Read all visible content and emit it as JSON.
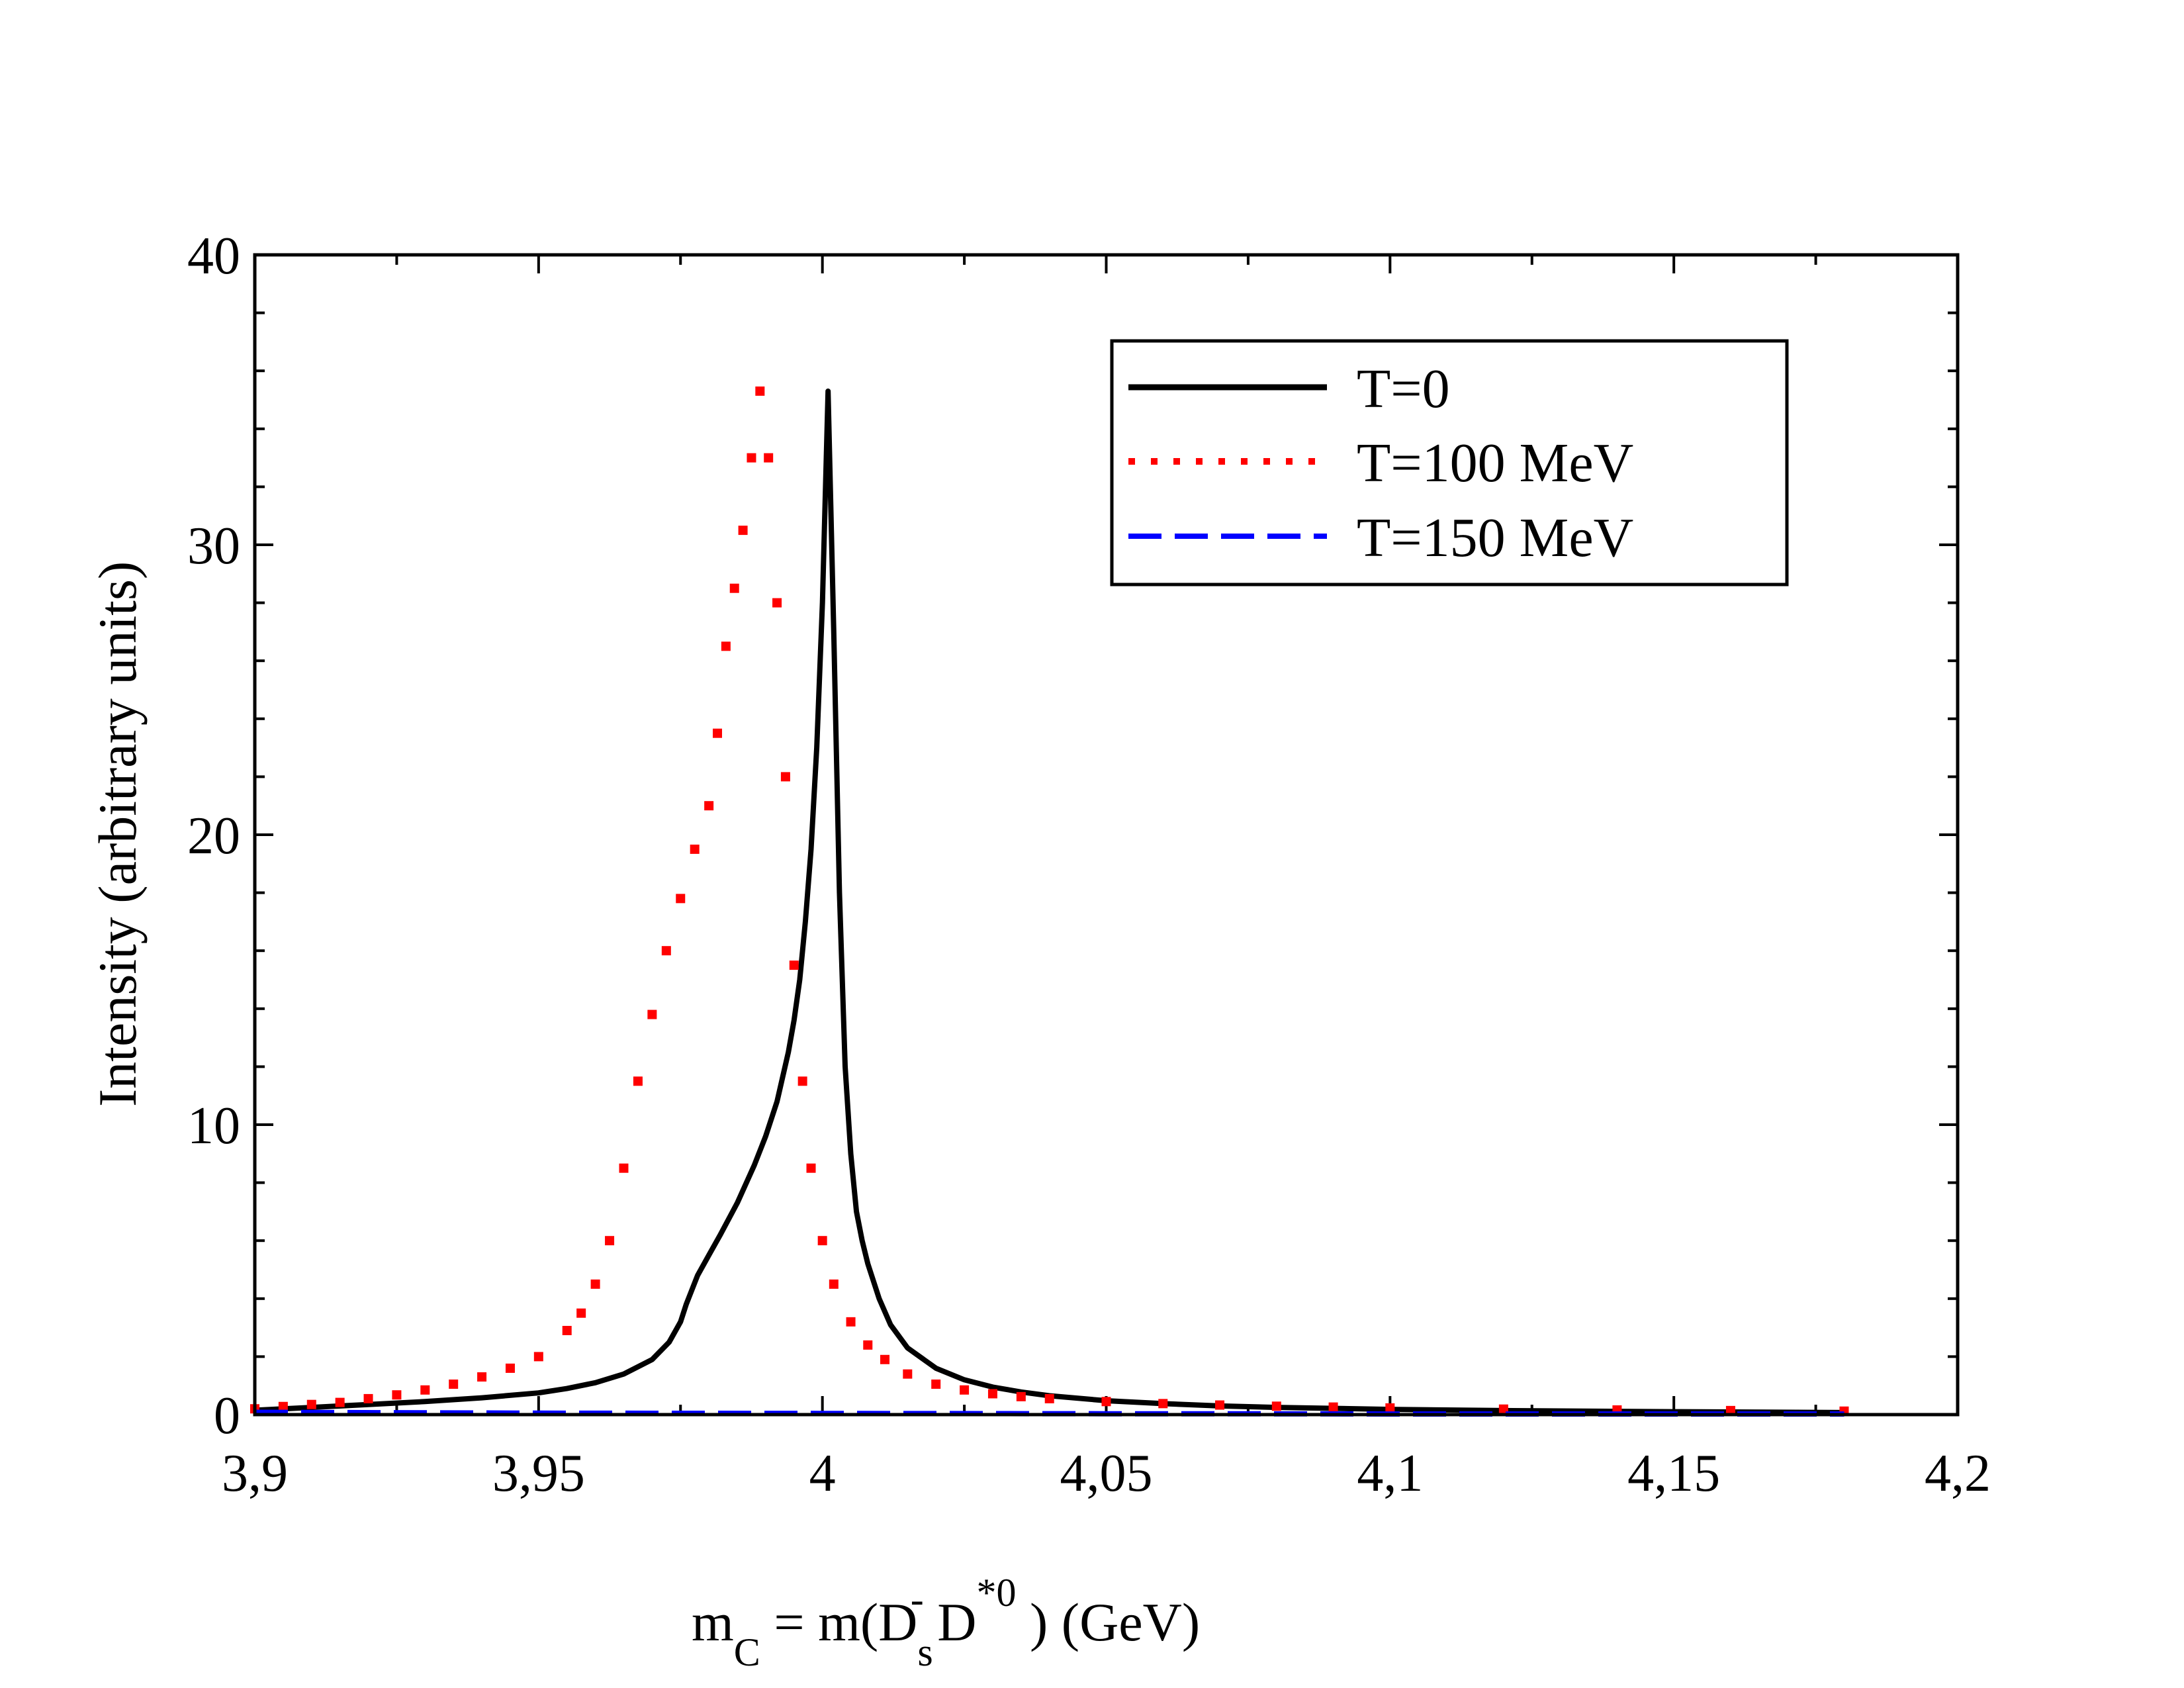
{
  "chart_data": {
    "type": "line",
    "xlabel": {
      "main": "m",
      "main_sub": "C",
      "eq": " = m(D",
      "d_sub": "s",
      "d_sup": "-",
      "mid": " D",
      "mid_sup": "*0",
      "tail": " )  (GeV)"
    },
    "ylabel": "Intensity (arbitrary units)",
    "xlim": [
      3.9,
      4.2
    ],
    "ylim": [
      0,
      40
    ],
    "xticks": [
      {
        "value": 3.9,
        "label": "3,9"
      },
      {
        "value": 3.95,
        "label": "3,95"
      },
      {
        "value": 4.0,
        "label": "4"
      },
      {
        "value": 4.05,
        "label": "4,05"
      },
      {
        "value": 4.1,
        "label": "4,1"
      },
      {
        "value": 4.15,
        "label": "4,15"
      },
      {
        "value": 4.2,
        "label": "4,2"
      }
    ],
    "yticks": [
      {
        "value": 0,
        "label": "0"
      },
      {
        "value": 10,
        "label": "10"
      },
      {
        "value": 20,
        "label": "20"
      },
      {
        "value": 30,
        "label": "30"
      },
      {
        "value": 40,
        "label": "40"
      }
    ],
    "legend_position": "top-right",
    "series": [
      {
        "name": "T=0",
        "color": "#000000",
        "style": "solid",
        "x": [
          3.9,
          3.91,
          3.92,
          3.93,
          3.94,
          3.95,
          3.955,
          3.96,
          3.965,
          3.97,
          3.973,
          3.975,
          3.976,
          3.977,
          3.978,
          3.98,
          3.982,
          3.985,
          3.988,
          3.99,
          3.992,
          3.994,
          3.995,
          3.996,
          3.997,
          3.998,
          3.999,
          4.0,
          4.001,
          4.002,
          4.003,
          4.004,
          4.005,
          4.006,
          4.007,
          4.008,
          4.01,
          4.012,
          4.015,
          4.02,
          4.025,
          4.03,
          4.035,
          4.04,
          4.05,
          4.06,
          4.07,
          4.08,
          4.1,
          4.12,
          4.15,
          4.18
        ],
        "y": [
          0.15,
          0.25,
          0.35,
          0.45,
          0.58,
          0.75,
          0.9,
          1.1,
          1.4,
          1.9,
          2.5,
          3.2,
          3.8,
          4.3,
          4.8,
          5.5,
          6.2,
          7.3,
          8.6,
          9.6,
          10.8,
          12.5,
          13.6,
          15.0,
          17.0,
          19.5,
          23.0,
          28.0,
          35.3,
          27.0,
          18.0,
          12.0,
          9.0,
          7.0,
          6.0,
          5.2,
          4.0,
          3.1,
          2.3,
          1.6,
          1.2,
          0.95,
          0.78,
          0.65,
          0.48,
          0.38,
          0.3,
          0.25,
          0.18,
          0.14,
          0.1,
          0.07
        ]
      },
      {
        "name": "T=100 MeV",
        "color": "#ff0000",
        "style": "dotted",
        "x": [
          3.9,
          3.905,
          3.91,
          3.915,
          3.92,
          3.925,
          3.93,
          3.935,
          3.94,
          3.945,
          3.95,
          3.955,
          3.9575,
          3.96,
          3.9625,
          3.965,
          3.9675,
          3.97,
          3.9725,
          3.975,
          3.9775,
          3.98,
          3.9815,
          3.983,
          3.9845,
          3.986,
          3.9875,
          3.989,
          3.9905,
          3.992,
          3.9935,
          3.995,
          3.9965,
          3.998,
          4.0,
          4.002,
          4.005,
          4.008,
          4.011,
          4.015,
          4.02,
          4.025,
          4.03,
          4.035,
          4.04,
          4.05,
          4.06,
          4.07,
          4.08,
          4.09,
          4.1,
          4.12,
          4.14,
          4.16,
          4.18
        ],
        "y": [
          0.2,
          0.28,
          0.35,
          0.42,
          0.55,
          0.68,
          0.85,
          1.05,
          1.3,
          1.6,
          2.0,
          2.9,
          3.5,
          4.5,
          6.0,
          8.5,
          11.5,
          13.8,
          16.0,
          17.8,
          19.5,
          21.0,
          23.5,
          26.5,
          28.5,
          30.5,
          33.0,
          35.3,
          33.0,
          28.0,
          22.0,
          15.5,
          11.5,
          8.5,
          6.0,
          4.5,
          3.2,
          2.4,
          1.9,
          1.4,
          1.05,
          0.85,
          0.72,
          0.62,
          0.55,
          0.45,
          0.38,
          0.33,
          0.29,
          0.26,
          0.23,
          0.19,
          0.16,
          0.14,
          0.12
        ]
      },
      {
        "name": "T=150 MeV",
        "color": "#0000ff",
        "style": "dashed",
        "x": [
          3.9,
          3.95,
          4.0,
          4.05,
          4.07,
          4.1,
          4.15,
          4.18
        ],
        "y": [
          0.08,
          0.05,
          0.04,
          0.03,
          0.03,
          0.02,
          0.02,
          0.02
        ]
      }
    ]
  }
}
